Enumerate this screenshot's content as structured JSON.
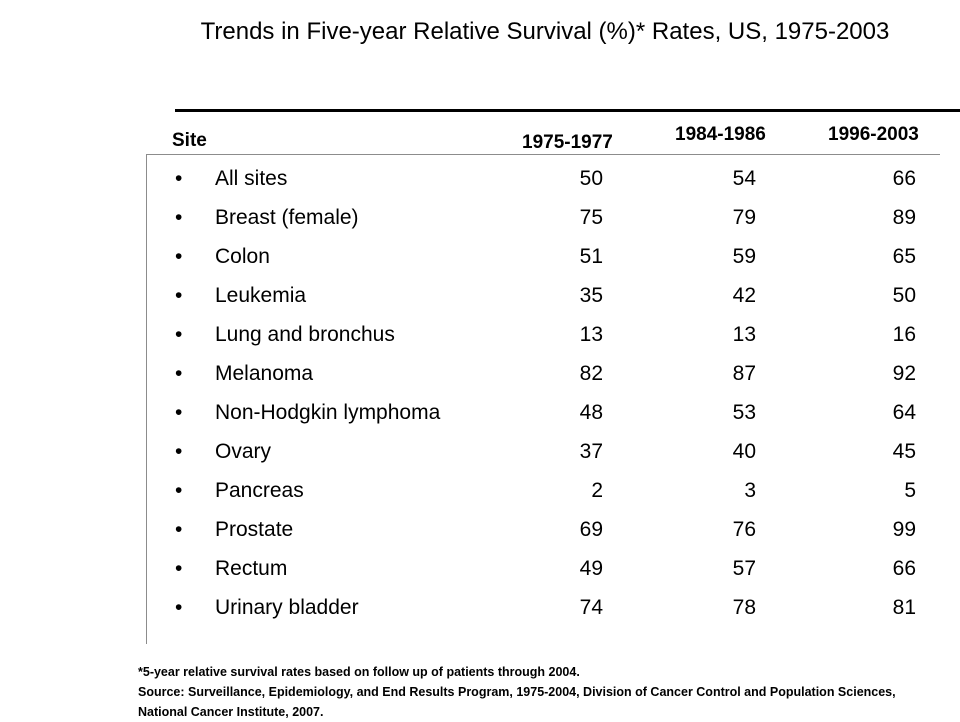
{
  "title": "Trends in Five-year Relative Survival (%)* Rates, US, 1975-2003",
  "columns": {
    "site": "Site",
    "period1": "1975-1977",
    "period2": "1984-1986",
    "period3": "1996-2003"
  },
  "rows": [
    {
      "bullet": "•",
      "site": "All sites",
      "v1": "50",
      "v2": "54",
      "v3": "66"
    },
    {
      "bullet": "•",
      "site": "Breast (female)",
      "v1": "75",
      "v2": "79",
      "v3": "89"
    },
    {
      "bullet": "•",
      "site": "Colon",
      "v1": "51",
      "v2": "59",
      "v3": "65"
    },
    {
      "bullet": "•",
      "site": "Leukemia",
      "v1": "35",
      "v2": "42",
      "v3": "50"
    },
    {
      "bullet": "•",
      "site": "Lung and bronchus",
      "v1": "13",
      "v2": "13",
      "v3": "16"
    },
    {
      "bullet": "•",
      "site": "Melanoma",
      "v1": "82",
      "v2": "87",
      "v3": "92"
    },
    {
      "bullet": "•",
      "site": "Non-Hodgkin lymphoma",
      "v1": "48",
      "v2": "53",
      "v3": "64"
    },
    {
      "bullet": "•",
      "site": "Ovary",
      "v1": "37",
      "v2": "40",
      "v3": "45"
    },
    {
      "bullet": "•",
      "site": "Pancreas",
      "v1": "2",
      "v2": "3",
      "v3": "5"
    },
    {
      "bullet": "•",
      "site": "Prostate",
      "v1": "69",
      "v2": "76",
      "v3": "99"
    },
    {
      "bullet": "•",
      "site": "Rectum",
      "v1": "49",
      "v2": "57",
      "v3": "66"
    },
    {
      "bullet": "•",
      "site": "Urinary bladder",
      "v1": "74",
      "v2": "78",
      "v3": "81"
    }
  ],
  "footnote": "*5-year relative survival rates based on follow up of patients through 2004.",
  "source": "Source: Surveillance, Epidemiology, and End Results Program, 1975-2004, Division of Cancer Control and Population Sciences, National Cancer Institute, 2007."
}
